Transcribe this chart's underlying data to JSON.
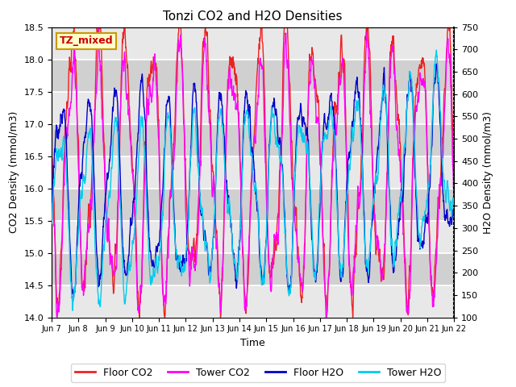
{
  "title": "Tonzi CO2 and H2O Densities",
  "xlabel": "Time",
  "ylabel_left": "CO2 Density (mmol/m3)",
  "ylabel_right": "H2O Density (mmol/m3)",
  "annotation_text": "TZ_mixed",
  "annotation_color": "#cc0000",
  "annotation_bg": "#ffffcc",
  "annotation_border": "#cc9900",
  "ylim_left": [
    14.0,
    18.5
  ],
  "ylim_right": [
    100,
    750
  ],
  "x_tick_labels": [
    "Jun 7",
    "Jun 8",
    "Jun 9",
    "Jun 10",
    "Jun 11",
    "Jun 12",
    "Jun 13",
    "Jun 14",
    "Jun 15",
    "Jun 16",
    "Jun 17",
    "Jun 18",
    "Jun 19",
    "Jun 20",
    "Jun 21",
    "Jun 22"
  ],
  "legend_labels": [
    "Floor CO2",
    "Tower CO2",
    "Floor H2O",
    "Tower H2O"
  ],
  "legend_colors": [
    "#ee2222",
    "#ff00ff",
    "#0000cc",
    "#00ccee"
  ],
  "background_color": "#ffffff",
  "plot_bg_light": "#e8e8e8",
  "plot_bg_dark": "#d0d0d0",
  "grid_color": "#ffffff",
  "title_fontsize": 11,
  "axis_fontsize": 9,
  "tick_fontsize": 8,
  "legend_fontsize": 9
}
